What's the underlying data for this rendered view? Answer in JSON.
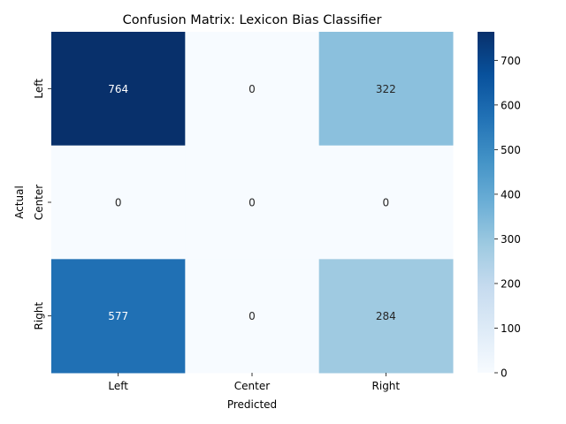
{
  "chart_data": {
    "type": "heatmap",
    "title": "Confusion Matrix: Lexicon Bias Classifier",
    "xlabel": "Predicted",
    "ylabel": "Actual",
    "x_categories": [
      "Left",
      "Center",
      "Right"
    ],
    "y_categories": [
      "Left",
      "Center",
      "Right"
    ],
    "values": [
      [
        764,
        0,
        322
      ],
      [
        0,
        0,
        0
      ],
      [
        577,
        0,
        284
      ]
    ],
    "colormap": "Blues",
    "color_range": [
      0,
      764
    ],
    "colorbar_ticks": [
      0,
      100,
      200,
      300,
      400,
      500,
      600,
      700
    ],
    "annotations": true
  }
}
